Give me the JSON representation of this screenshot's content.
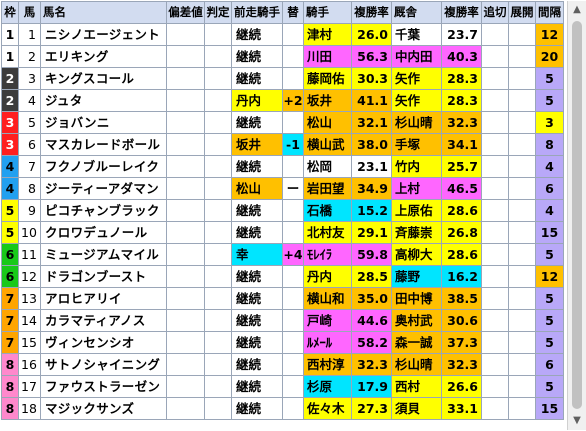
{
  "header": {
    "waku": "枠",
    "ban": "馬",
    "name": "馬名",
    "hensachi": "偏差値",
    "hantei": "判定",
    "zenso": "前走騎手",
    "kae": "替",
    "kishu": "騎手",
    "rate1": "複勝率",
    "kyusha": "厩舎",
    "rate2": "複勝率",
    "oikiri": "追切",
    "tenkai": "展開",
    "kanpo": "間隔"
  },
  "colors": {
    "waku": {
      "1": {
        "bg": "#ffffff",
        "fg": "#000000"
      },
      "2": {
        "bg": "#3c3c3c",
        "fg": "#ffffff"
      },
      "3": {
        "bg": "#ff1f1f",
        "fg": "#ffffff"
      },
      "4": {
        "bg": "#22a0f0",
        "fg": "#000000"
      },
      "5": {
        "bg": "#ffff00",
        "fg": "#000000"
      },
      "6": {
        "bg": "#19c919",
        "fg": "#000000"
      },
      "7": {
        "bg": "#ffa500",
        "fg": "#000000"
      },
      "8": {
        "bg": "#ff88cc",
        "fg": "#000000"
      }
    },
    "tiers": {
      "yellow": "#ffff00",
      "orange": "#ffc000",
      "pink": "#ff66ff",
      "cyan": "#00e5ff",
      "purple": "#b8a8f8",
      "white": "#ffffff"
    }
  },
  "rows": [
    {
      "waku": "1",
      "ban": "1",
      "name": "ニシノエージェント",
      "zenso": "継続",
      "zensoColor": "white",
      "kae": "",
      "kishu": "津村",
      "kishuColor": "yellow",
      "rate1": "26.0",
      "kyusha": "千葉",
      "kyushaColor": "white",
      "rate2": "23.7",
      "kanpo": "12",
      "kanpoColor": "orange"
    },
    {
      "waku": "1",
      "ban": "2",
      "name": "エリキング",
      "zenso": "継続",
      "zensoColor": "white",
      "kae": "",
      "kishu": "川田",
      "kishuColor": "pink",
      "rate1": "56.3",
      "kyusha": "中内田",
      "kyushaColor": "pink",
      "rate2": "40.3",
      "kanpo": "20",
      "kanpoColor": "orange"
    },
    {
      "waku": "2",
      "ban": "3",
      "name": "キングスコール",
      "zenso": "継続",
      "zensoColor": "white",
      "kae": "",
      "kishu": "藤岡佑",
      "kishuColor": "yellow",
      "rate1": "30.3",
      "kyusha": "矢作",
      "kyushaColor": "yellow",
      "rate2": "28.3",
      "kanpo": "5",
      "kanpoColor": "purple"
    },
    {
      "waku": "2",
      "ban": "4",
      "name": "ジュタ",
      "zenso": "丹内",
      "zensoColor": "yellow",
      "kae": "+2",
      "kaeColor": "orange",
      "kishu": "坂井",
      "kishuColor": "orange",
      "rate1": "41.1",
      "kyusha": "矢作",
      "kyushaColor": "yellow",
      "rate2": "28.3",
      "kanpo": "5",
      "kanpoColor": "purple"
    },
    {
      "waku": "3",
      "ban": "5",
      "name": "ジョバンニ",
      "zenso": "継続",
      "zensoColor": "white",
      "kae": "",
      "kishu": "松山",
      "kishuColor": "orange",
      "rate1": "32.1",
      "kyusha": "杉山晴",
      "kyushaColor": "orange",
      "rate2": "32.3",
      "kanpo": "3",
      "kanpoColor": "yellow"
    },
    {
      "waku": "3",
      "ban": "6",
      "name": "マスカレードボール",
      "zenso": "坂井",
      "zensoColor": "orange",
      "kae": "-1",
      "kaeColor": "cyan",
      "kishu": "横山武",
      "kishuColor": "orange",
      "rate1": "38.0",
      "kyusha": "手塚",
      "kyushaColor": "orange",
      "rate2": "34.1",
      "kanpo": "8",
      "kanpoColor": "purple"
    },
    {
      "waku": "4",
      "ban": "7",
      "name": "フクノブルーレイク",
      "zenso": "継続",
      "zensoColor": "white",
      "kae": "",
      "kishu": "松岡",
      "kishuColor": "white",
      "rate1": "23.1",
      "kyusha": "竹内",
      "kyushaColor": "yellow",
      "rate2": "25.7",
      "kanpo": "4",
      "kanpoColor": "purple"
    },
    {
      "waku": "4",
      "ban": "8",
      "name": "ジーティーアダマン",
      "zenso": "松山",
      "zensoColor": "orange",
      "kae": "ー",
      "kaeColor": "white",
      "kishu": "岩田望",
      "kishuColor": "orange",
      "rate1": "34.9",
      "kyusha": "上村",
      "kyushaColor": "pink",
      "rate2": "46.5",
      "kanpo": "6",
      "kanpoColor": "purple"
    },
    {
      "waku": "5",
      "ban": "9",
      "name": "ピコチャンブラック",
      "zenso": "継続",
      "zensoColor": "white",
      "kae": "",
      "kishu": "石橋",
      "kishuColor": "cyan",
      "rate1": "15.2",
      "kyusha": "上原佑",
      "kyushaColor": "yellow",
      "rate2": "28.6",
      "kanpo": "4",
      "kanpoColor": "purple"
    },
    {
      "waku": "5",
      "ban": "10",
      "name": "クロワデュノール",
      "zenso": "継続",
      "zensoColor": "white",
      "kae": "",
      "kishu": "北村友",
      "kishuColor": "yellow",
      "rate1": "29.1",
      "kyusha": "斉藤崇",
      "kyushaColor": "yellow",
      "rate2": "26.8",
      "kanpo": "15",
      "kanpoColor": "purple"
    },
    {
      "waku": "6",
      "ban": "11",
      "name": "ミュージアムマイル",
      "zenso": "幸",
      "zensoColor": "cyan",
      "kae": "+4",
      "kaeColor": "pink",
      "kishu": "ﾓﾚｲﾗ",
      "kishuColor": "pink",
      "rate1": "59.8",
      "kyusha": "高柳大",
      "kyushaColor": "yellow",
      "rate2": "28.6",
      "kanpo": "5",
      "kanpoColor": "purple"
    },
    {
      "waku": "6",
      "ban": "12",
      "name": "ドラゴンブースト",
      "zenso": "継続",
      "zensoColor": "white",
      "kae": "",
      "kishu": "丹内",
      "kishuColor": "yellow",
      "rate1": "28.5",
      "kyusha": "藤野",
      "kyushaColor": "cyan",
      "rate2": "16.2",
      "kanpo": "12",
      "kanpoColor": "orange"
    },
    {
      "waku": "7",
      "ban": "13",
      "name": "アロヒアリイ",
      "zenso": "継続",
      "zensoColor": "white",
      "kae": "",
      "kishu": "横山和",
      "kishuColor": "orange",
      "rate1": "35.0",
      "kyusha": "田中博",
      "kyushaColor": "orange",
      "rate2": "38.5",
      "kanpo": "5",
      "kanpoColor": "purple"
    },
    {
      "waku": "7",
      "ban": "14",
      "name": "カラマティアノス",
      "zenso": "継続",
      "zensoColor": "white",
      "kae": "",
      "kishu": "戸崎",
      "kishuColor": "pink",
      "rate1": "44.6",
      "kyusha": "奥村武",
      "kyushaColor": "orange",
      "rate2": "30.6",
      "kanpo": "5",
      "kanpoColor": "purple"
    },
    {
      "waku": "7",
      "ban": "15",
      "name": "ヴィンセンシオ",
      "zenso": "継続",
      "zensoColor": "white",
      "kae": "",
      "kishu": "ﾙﾒｰﾙ",
      "kishuColor": "pink",
      "rate1": "58.2",
      "kyusha": "森一誠",
      "kyushaColor": "orange",
      "rate2": "37.3",
      "kanpo": "5",
      "kanpoColor": "purple"
    },
    {
      "waku": "8",
      "ban": "16",
      "name": "サトノシャイニング",
      "zenso": "継続",
      "zensoColor": "white",
      "kae": "",
      "kishu": "西村淳",
      "kishuColor": "orange",
      "rate1": "32.3",
      "kyusha": "杉山晴",
      "kyushaColor": "orange",
      "rate2": "32.3",
      "kanpo": "6",
      "kanpoColor": "purple"
    },
    {
      "waku": "8",
      "ban": "17",
      "name": "ファウストラーゼン",
      "zenso": "継続",
      "zensoColor": "white",
      "kae": "",
      "kishu": "杉原",
      "kishuColor": "cyan",
      "rate1": "17.9",
      "kyusha": "西村",
      "kyushaColor": "yellow",
      "rate2": "26.6",
      "kanpo": "5",
      "kanpoColor": "purple"
    },
    {
      "waku": "8",
      "ban": "18",
      "name": "マジックサンズ",
      "zenso": "継続",
      "zensoColor": "white",
      "kae": "",
      "kishu": "佐々木",
      "kishuColor": "yellow",
      "rate1": "27.3",
      "kyusha": "須貝",
      "kyushaColor": "yellow",
      "rate2": "33.1",
      "kanpo": "15",
      "kanpoColor": "purple"
    }
  ],
  "scroll": {
    "up": "▲",
    "down": "▼"
  }
}
